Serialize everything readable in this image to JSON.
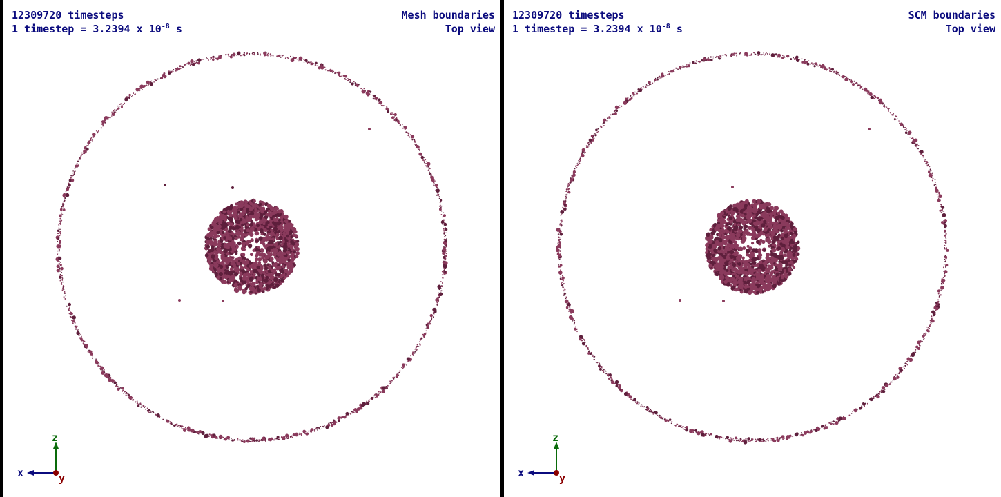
{
  "panels": [
    {
      "timesteps": "12309720 timesteps",
      "timestep_prefix": "1 timestep = 3.2394 x 10",
      "timestep_exp": "-8",
      "timestep_unit": " s",
      "boundary_label": "Mesh boundaries",
      "view_label": "Top view"
    },
    {
      "timesteps": "12309720 timesteps",
      "timestep_prefix": "1 timestep = 3.2394 x 10",
      "timestep_exp": "-8",
      "timestep_unit": " s",
      "boundary_label": "SCM boundaries",
      "view_label": "Top view"
    }
  ],
  "axes": {
    "z": "z",
    "x": "x",
    "y": "y"
  },
  "colors": {
    "particle": "#8a3a5c",
    "particle_dark": "#5e1f3c",
    "text": "#0b0b7e",
    "axis_z": "#0a6b0a",
    "axis_x": "#0b0b7e",
    "axis_y": "#8b0000"
  }
}
